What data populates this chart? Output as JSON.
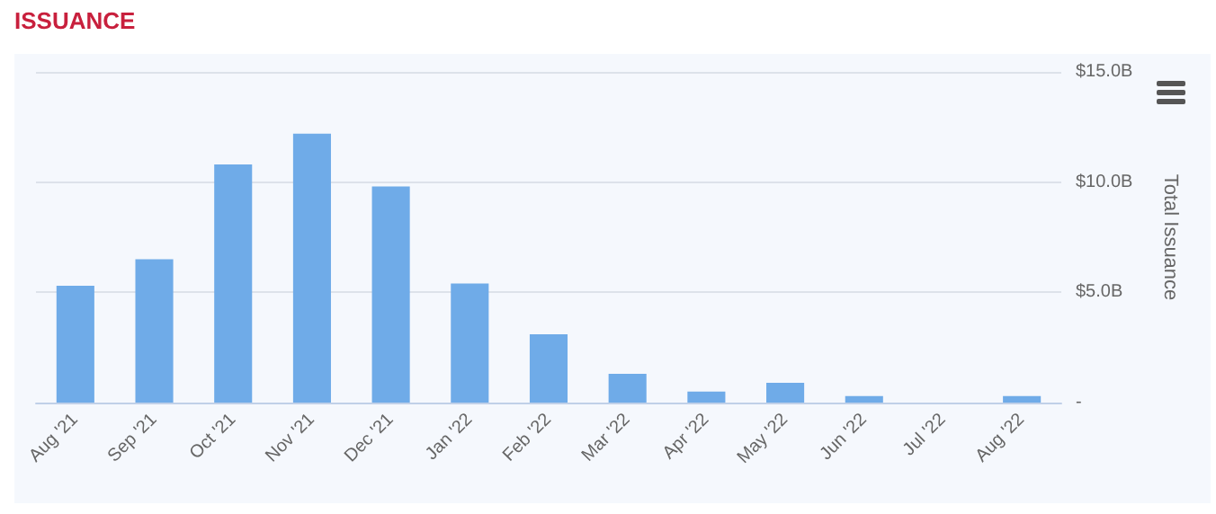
{
  "chart_data": {
    "type": "bar",
    "title": "ISSUANCE",
    "ylabel": "Total Issuance",
    "categories": [
      "Aug '21",
      "Sep '21",
      "Oct '21",
      "Nov '21",
      "Dec '21",
      "Jan '22",
      "Feb '22",
      "Mar '22",
      "Apr '22",
      "May '22",
      "Jun '22",
      "Jul '22",
      "Aug '22"
    ],
    "values": [
      5.3,
      6.5,
      10.8,
      12.2,
      9.8,
      5.4,
      3.1,
      1.3,
      0.5,
      0.9,
      0.3,
      0,
      0.3
    ],
    "color": "#6fabe8",
    "ylim": [
      0,
      15
    ],
    "yticks": [
      {
        "value": 0,
        "label": "-"
      },
      {
        "value": 5,
        "label": "$5.0B"
      },
      {
        "value": 10,
        "label": "$10.0B"
      },
      {
        "value": 15,
        "label": "$15.0B"
      }
    ],
    "grid": "y"
  }
}
